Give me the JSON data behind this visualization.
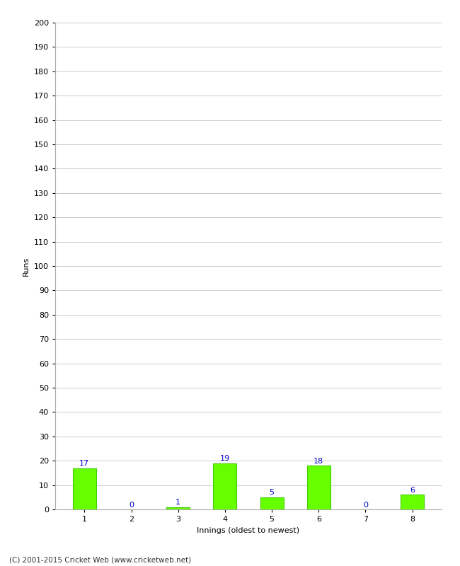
{
  "categories": [
    "1",
    "2",
    "3",
    "4",
    "5",
    "6",
    "7",
    "8"
  ],
  "values": [
    17,
    0,
    1,
    19,
    5,
    18,
    0,
    6
  ],
  "bar_color": "#66ff00",
  "bar_edge_color": "#44cc00",
  "label_color": "#0000cc",
  "xlabel": "Innings (oldest to newest)",
  "ylabel": "Runs",
  "ylim": [
    0,
    200
  ],
  "yticks": [
    0,
    10,
    20,
    30,
    40,
    50,
    60,
    70,
    80,
    90,
    100,
    110,
    120,
    130,
    140,
    150,
    160,
    170,
    180,
    190,
    200
  ],
  "background_color": "#ffffff",
  "grid_color": "#cccccc",
  "footer": "(C) 2001-2015 Cricket Web (www.cricketweb.net)"
}
